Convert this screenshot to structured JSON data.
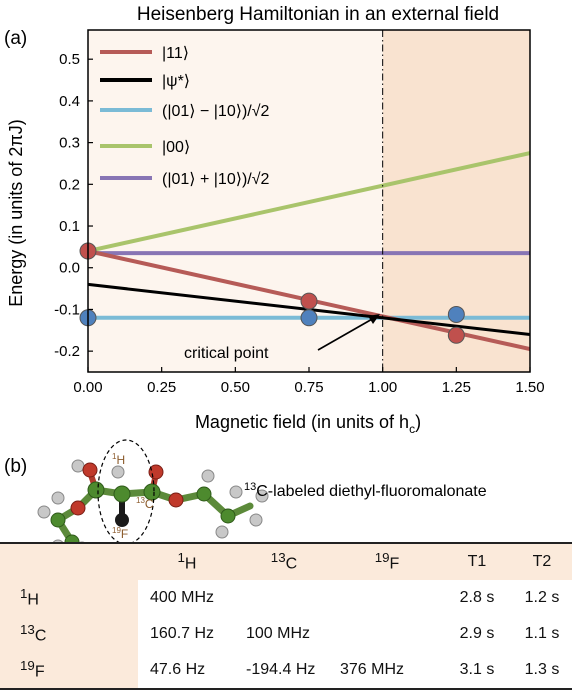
{
  "panel_a_label": "(a)",
  "panel_b_label": "(b)",
  "chart_data": {
    "type": "line",
    "title": "Heisenberg Hamiltonian in an external field",
    "xlabel": "Magnetic field (in units of h",
    "xlabel_sub": "c",
    "xlabel_close": ")",
    "ylabel": "Energy (in units of 2πJ)",
    "xlim": [
      0,
      1.5
    ],
    "ylim": [
      -0.25,
      0.57
    ],
    "xticks": [
      "0.00",
      "0.25",
      "0.50",
      "0.75",
      "1.00",
      "1.25",
      "1.50"
    ],
    "xtick_values": [
      0,
      0.25,
      0.5,
      0.75,
      1.0,
      1.25,
      1.5
    ],
    "yticks": [
      "0.5",
      "0.4",
      "0.3",
      "0.2",
      "0.1",
      "0.0",
      "-0.1",
      "-0.2"
    ],
    "ytick_values": [
      0.5,
      0.4,
      0.3,
      0.2,
      0.1,
      0.0,
      -0.1,
      -0.2
    ],
    "critical_x": 1.0,
    "annotation": "critical point",
    "colors": {
      "left_region": "#fdf5ee",
      "right_region": "#f9e3d0",
      "s11": "#b65b57",
      "psi": "#000000",
      "singlet": "#7bbbd6",
      "s00": "#a9c46b",
      "triplet": "#8875b4",
      "point_red": "#c0504d",
      "point_blue": "#4f81bd"
    },
    "series": [
      {
        "name": "|11⟩",
        "x": [
          0,
          1.5
        ],
        "y": [
          0.04,
          -0.195
        ]
      },
      {
        "name": "|ψ*⟩",
        "x": [
          0,
          1.5
        ],
        "y": [
          -0.04,
          -0.16
        ]
      },
      {
        "name": "(|01⟩ − |10⟩)/√2",
        "x": [
          0,
          1.5
        ],
        "y": [
          -0.12,
          -0.12
        ]
      },
      {
        "name": "|00⟩",
        "x": [
          0,
          1.5
        ],
        "y": [
          0.04,
          0.275
        ]
      },
      {
        "name": "(|01⟩ + |10⟩)/√2",
        "x": [
          0,
          1.5
        ],
        "y": [
          0.035,
          0.035
        ]
      }
    ],
    "markers": [
      {
        "x": 0,
        "y": 0.04,
        "color": "point_red"
      },
      {
        "x": 0.75,
        "y": -0.08,
        "color": "point_red"
      },
      {
        "x": 1.25,
        "y": -0.162,
        "color": "point_red"
      },
      {
        "x": 0,
        "y": -0.12,
        "color": "point_blue"
      },
      {
        "x": 0.75,
        "y": -0.12,
        "color": "point_blue"
      },
      {
        "x": 1.25,
        "y": -0.112,
        "color": "point_blue"
      }
    ]
  },
  "molecule": {
    "title_sup": "13",
    "title_rest": "C-labeled diethyl-fluoromalonate",
    "label_H": "H",
    "label_H_sup": "1",
    "label_C": "C",
    "label_C_sup": "13",
    "label_F": "F",
    "label_F_sup": "19"
  },
  "table": {
    "headers": [
      {
        "sup": "1",
        "text": "H"
      },
      {
        "sup": "13",
        "text": "C"
      },
      {
        "sup": "19",
        "text": "F"
      },
      {
        "sup": "",
        "text": "T1"
      },
      {
        "sup": "",
        "text": "T2"
      }
    ],
    "rows": [
      {
        "sup": "1",
        "nucleus": "H",
        "cells": [
          "400 MHz",
          "",
          "",
          "2.8 s",
          "1.2 s"
        ]
      },
      {
        "sup": "13",
        "nucleus": "C",
        "cells": [
          "160.7 Hz",
          "100 MHz",
          "",
          "2.9 s",
          "1.1 s"
        ]
      },
      {
        "sup": "19",
        "nucleus": "F",
        "cells": [
          "47.6 Hz",
          "-194.4 Hz",
          "376 MHz",
          "3.1 s",
          "1.3 s"
        ]
      }
    ]
  }
}
